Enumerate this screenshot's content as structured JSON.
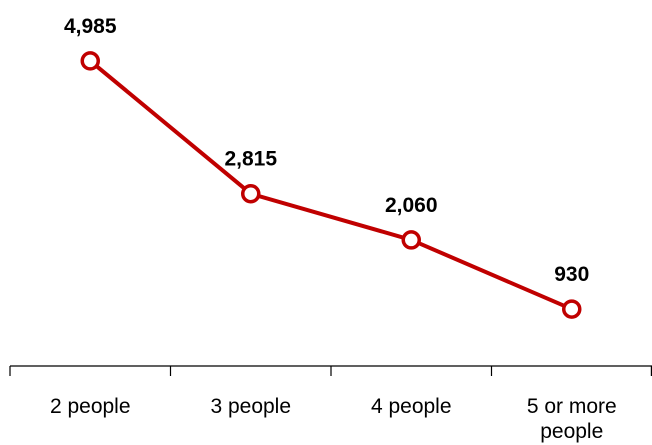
{
  "chart_data": {
    "type": "line",
    "categories": [
      "2 people",
      "3 people",
      "4 people",
      "5 or more people"
    ],
    "category_label_lines": [
      [
        "2 people"
      ],
      [
        "3 people"
      ],
      [
        "4 people"
      ],
      [
        "5 or more",
        "people"
      ]
    ],
    "series": [
      {
        "values": [
          4985,
          2815,
          2060,
          930
        ],
        "data_labels": [
          "4,985",
          "2,815",
          "2,060",
          "930"
        ],
        "color": "#c00000"
      }
    ],
    "title": "",
    "xlabel": "",
    "ylabel": "",
    "ylim": [
      0,
      5000
    ],
    "grid": false,
    "legend": "none"
  }
}
